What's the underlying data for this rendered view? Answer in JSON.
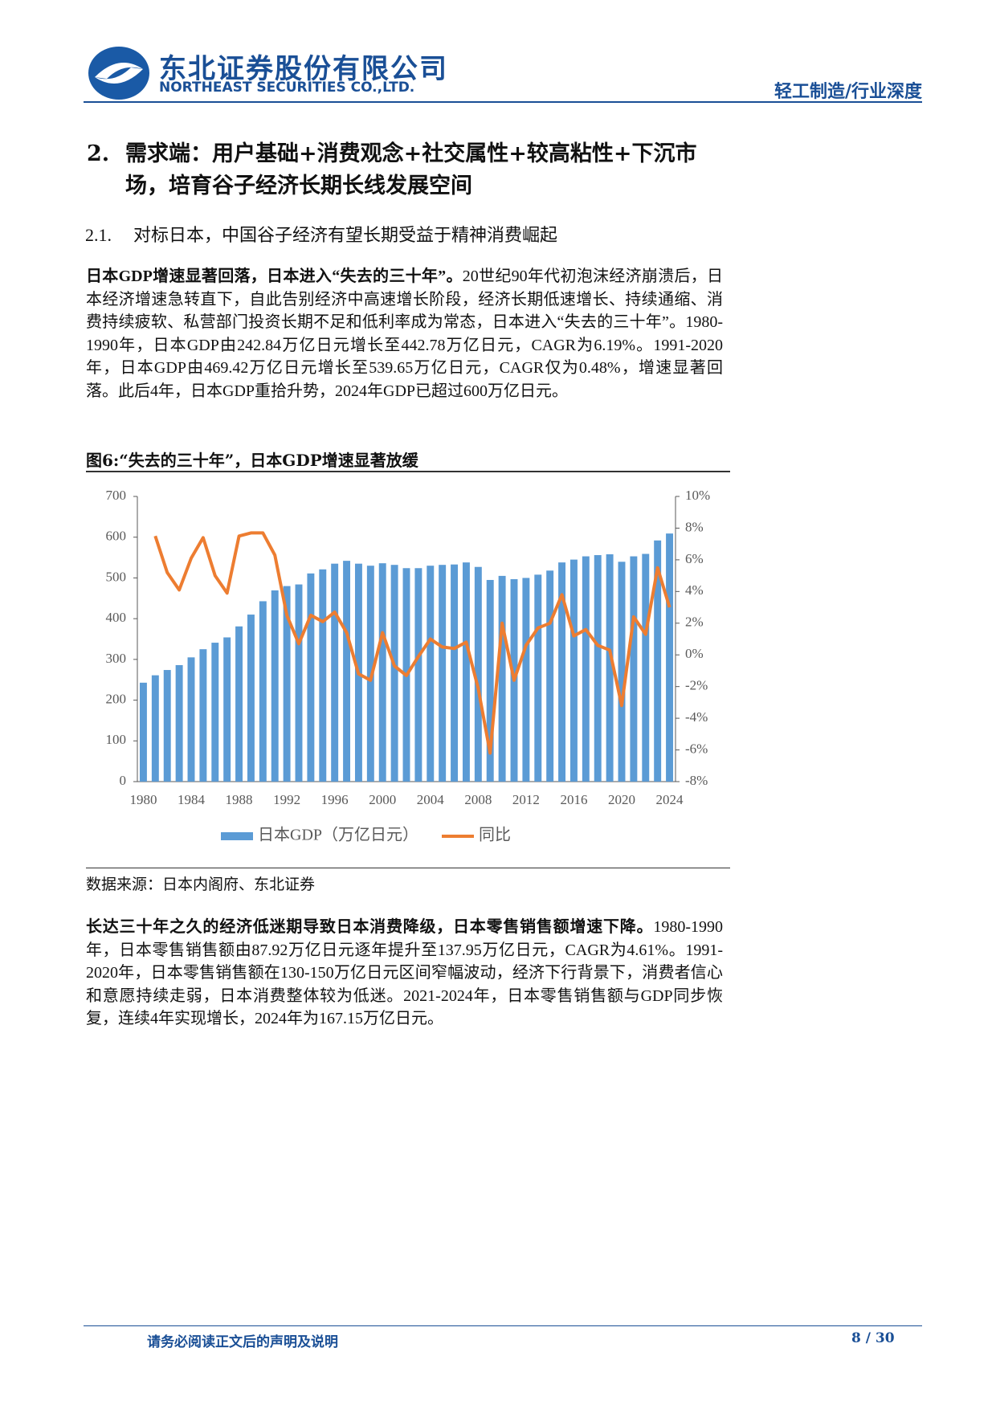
{
  "header": {
    "company_cn": "东北证券股份有限公司",
    "company_en": "NORTHEAST SECURITIES CO.,LTD.",
    "category": "轻工制造/行业深度"
  },
  "section": {
    "number": "2.",
    "title": "需求端：用户基础+消费观念+社交属性+较高粘性+下沉市场，培育谷子经济长期长线发展空间"
  },
  "subsection": {
    "number": "2.1.",
    "title": "对标日本，中国谷子经济有望长期受益于精神消费崛起"
  },
  "paragraphs": [
    {
      "lead": "日本GDP增速显著回落，日本进入“失去的三十年”。",
      "text": "20世纪90年代初泡沫经济崩溃后，日本经济增速急转直下，自此告别经济中高速增长阶段，经济长期低速增长、持续通缩、消费持续疲软、私营部门投资长期不足和低利率成为常态，日本进入“失去的三十年”。1980-1990年，日本GDP由242.84万亿日元增长至442.78万亿日元，CAGR为6.19%。1991-2020年，日本GDP由469.42万亿日元增长至539.65万亿日元，CAGR仅为0.48%，增速显著回落。此后4年，日本GDP重拾升势，2024年GDP已超过600万亿日元。"
    },
    {
      "lead": "长达三十年之久的经济低迷期导致日本消费降级，日本零售销售额增速下降。",
      "text": "1980-1990年，日本零售销售额由87.92万亿日元逐年提升至137.95万亿日元，CAGR为4.61%。1991-2020年，日本零售销售额在130-150万亿日元区间窄幅波动，经济下行背景下，消费者信心和意愿持续走弱，日本消费整体较为低迷。2021-2024年，日本零售销售额与GDP同步恢复，连续4年实现增长，2024年为167.15万亿日元。"
    }
  ],
  "figure": {
    "caption": "图6:“失去的三十年”，日本GDP增速显著放缓",
    "source": "数据来源：日本内阁府、东北证券"
  },
  "chart_data": {
    "type": "bar_line",
    "categories": [
      "1980",
      null,
      null,
      null,
      "1984",
      null,
      null,
      null,
      "1988",
      null,
      null,
      null,
      "1992",
      null,
      null,
      null,
      "1996",
      null,
      null,
      null,
      "2000",
      null,
      null,
      null,
      "2004",
      null,
      null,
      null,
      "2008",
      null,
      null,
      null,
      "2012",
      null,
      null,
      null,
      "2016",
      null,
      null,
      null,
      "2020",
      null,
      null,
      null,
      "2024"
    ],
    "series": [
      {
        "name": "日本GDP（万亿日元）",
        "color": "#5b9bd5",
        "type": "bar",
        "values": [
          242.84,
          261,
          274,
          286,
          305,
          325,
          341,
          354,
          381,
          410,
          442.78,
          469.42,
          480,
          484,
          511,
          521,
          535,
          542,
          535,
          530,
          536,
          532,
          524,
          524,
          530,
          532,
          533,
          538,
          527,
          495,
          505,
          497,
          500,
          508,
          518,
          538,
          545,
          553,
          556,
          558,
          539.65,
          553,
          559,
          592,
          609
        ]
      },
      {
        "name": "同比",
        "color": "#ed7d31",
        "type": "line",
        "axis": "y2",
        "values": [
          null,
          7.5,
          5.2,
          4.1,
          6.1,
          7.4,
          5.0,
          3.9,
          7.5,
          7.7,
          7.7,
          6.3,
          2.5,
          0.7,
          2.5,
          2.1,
          2.7,
          1.4,
          -1.2,
          -1.6,
          1.4,
          -0.7,
          -1.3,
          -0.1,
          1.0,
          0.5,
          0.4,
          0.8,
          -2.1,
          -6.2,
          2.0,
          -1.6,
          0.6,
          1.7,
          2.0,
          3.8,
          1.2,
          1.6,
          0.6,
          0.3,
          -3.2,
          2.4,
          1.3,
          5.5,
          3.0
        ]
      }
    ],
    "ylim": [
      0,
      700
    ],
    "yticks": [
      0,
      100,
      200,
      300,
      400,
      500,
      600,
      700
    ],
    "y2lim": [
      -8,
      10
    ],
    "y2ticks": [
      {
        "value": -8,
        "label": "-8%"
      },
      {
        "value": -6,
        "label": "-6%"
      },
      {
        "value": -4,
        "label": "-4%"
      },
      {
        "value": -2,
        "label": "-2%"
      },
      {
        "value": 0,
        "label": "0%"
      },
      {
        "value": 2,
        "label": "2%"
      },
      {
        "value": 4,
        "label": "4%"
      },
      {
        "value": 6,
        "label": "6%"
      },
      {
        "value": 8,
        "label": "8%"
      },
      {
        "value": 10,
        "label": "10%"
      }
    ],
    "legend": "bottom",
    "grid": false
  },
  "footer": {
    "disclaimer": "请务必阅读正文后的声明及说明",
    "page": "8 / 30"
  }
}
